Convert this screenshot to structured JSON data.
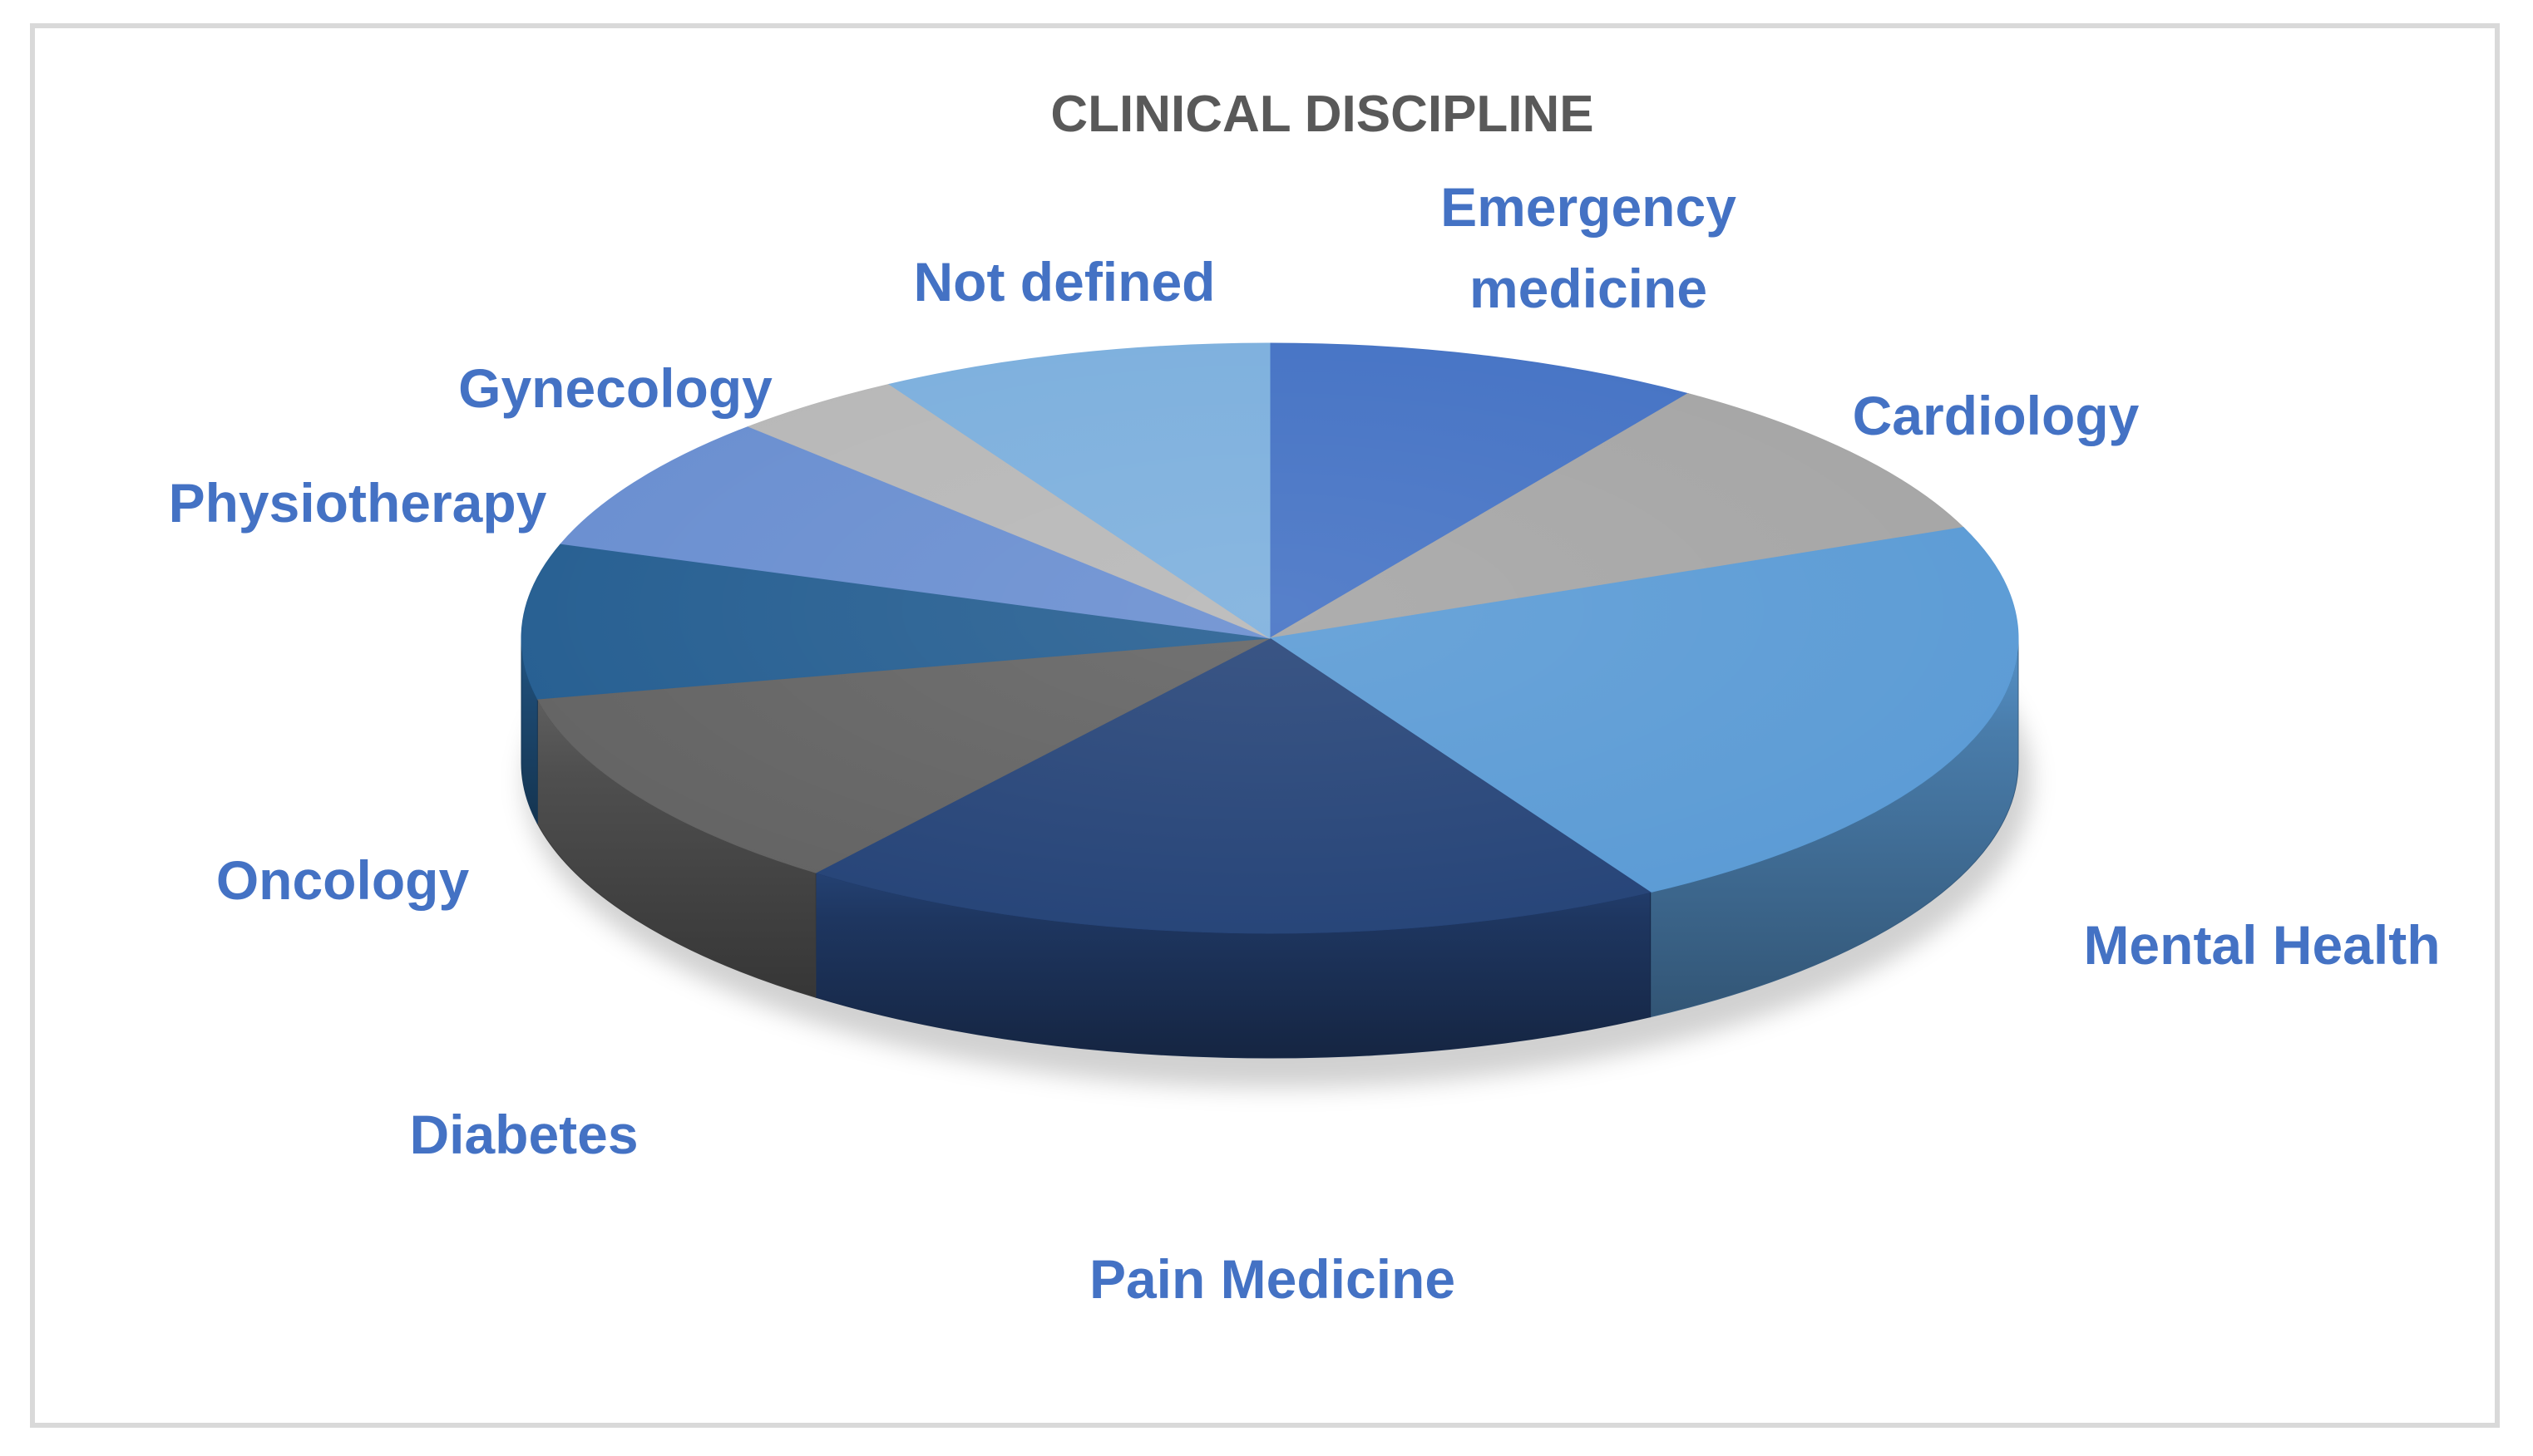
{
  "chart_data": {
    "type": "pie",
    "title": "CLINICAL DISCIPLINE",
    "categories": [
      "Emergency medicine",
      "Cardiology",
      "Mental Health",
      "Pain Medicine",
      "Diabetes",
      "Oncology",
      "Physiotherapy",
      "Gynecology",
      "Not defined"
    ],
    "values": [
      10,
      10,
      24,
      20,
      12,
      9,
      8,
      4,
      9
    ],
    "colors": [
      "#4472c4",
      "#a5a5a5",
      "#5b9bd5",
      "#264478",
      "#636363",
      "#255e91",
      "#698ed0",
      "#b7b7b7",
      "#7cafdd"
    ],
    "label_color": "#4472c4",
    "title_color": "#595959",
    "style": "3d",
    "legend": "none"
  }
}
